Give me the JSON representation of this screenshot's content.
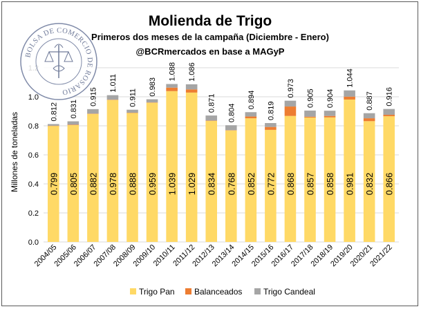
{
  "chart_data": {
    "type": "bar",
    "stacked": true,
    "title": "Molienda de Trigo",
    "subtitle": "Primeros dos meses de la campaña (Diciembre - Enero)",
    "source": "@BCRmercados en base a MAGyP",
    "ylabel": "Millones de toneladas",
    "xlabel": "",
    "ylim": [
      0,
      1.2
    ],
    "yticks": [
      "0.0",
      "0.2",
      "0.4",
      "0.6",
      "0.8",
      "1.0",
      "1.2"
    ],
    "categories": [
      "2004/05",
      "2005/06",
      "2006/07",
      "2007/08",
      "2008/09",
      "2009/10",
      "2010/11",
      "2011/12",
      "2012/13",
      "2013/14",
      "2014/15",
      "2015/16",
      "2016/17",
      "2017/18",
      "2018/19",
      "2019/20",
      "2020/21",
      "2021/22"
    ],
    "series": [
      {
        "name": "Trigo Pan",
        "color": "#FFD966",
        "values": [
          0.799,
          0.805,
          0.882,
          0.978,
          0.888,
          0.959,
          1.039,
          1.029,
          0.834,
          0.768,
          0.852,
          0.772,
          0.868,
          0.857,
          0.858,
          0.981,
          0.832,
          0.866
        ]
      },
      {
        "name": "Balanceados",
        "color": "#ED7D31",
        "values": [
          0.002,
          0.003,
          0.002,
          0.002,
          0.002,
          0.002,
          0.024,
          0.022,
          0.002,
          0.002,
          0.012,
          0.02,
          0.065,
          0.006,
          0.01,
          0.02,
          0.02,
          0.01
        ]
      },
      {
        "name": "Trigo Candeal",
        "color": "#A5A5A5",
        "values": [
          0.011,
          0.023,
          0.031,
          0.031,
          0.021,
          0.022,
          0.025,
          0.035,
          0.035,
          0.034,
          0.03,
          0.027,
          0.04,
          0.042,
          0.036,
          0.043,
          0.035,
          0.04
        ]
      }
    ],
    "totals": [
      "0.812",
      "0.831",
      "0.915",
      "1.011",
      "0.911",
      "0.983",
      "1.088",
      "1.086",
      "0.871",
      "0.804",
      "0.894",
      "0.819",
      "0.973",
      "0.905",
      "0.904",
      "1.044",
      "0.887",
      "0.916"
    ],
    "inner_labels": [
      "0.799",
      "0.805",
      "0.882",
      "0.978",
      "0.888",
      "0.959",
      "1.039",
      "1.029",
      "0.834",
      "0.768",
      "0.852",
      "0.772",
      "0.868",
      "0.857",
      "0.858",
      "0.981",
      "0.832",
      "0.866"
    ],
    "legend_position": "bottom",
    "grid": true
  },
  "seal": {
    "text": "BOLSA DE COMERCIO DE ROSARIO"
  }
}
